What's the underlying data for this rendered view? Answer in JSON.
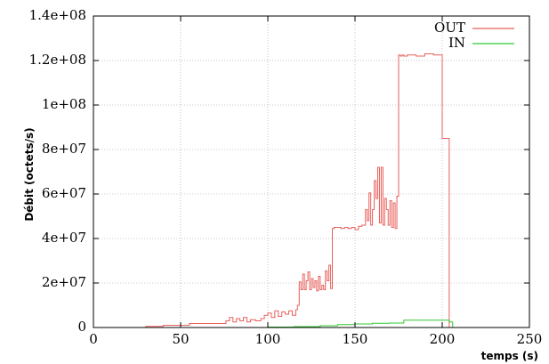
{
  "chart_data": {
    "type": "line",
    "xlabel": "temps (s)",
    "ylabel": "Débit (octets/s)",
    "xlim": [
      0,
      250
    ],
    "ylim": [
      0,
      140000000
    ],
    "xticks": [
      0,
      50,
      100,
      150,
      200,
      250
    ],
    "xtick_labels": [
      "0",
      "50",
      "100",
      "150",
      "200",
      "250"
    ],
    "yticks": [
      0,
      20000000,
      40000000,
      60000000,
      80000000,
      100000000,
      120000000,
      140000000
    ],
    "ytick_labels": [
      "0",
      "2e+07",
      "4e+07",
      "6e+07",
      "8e+07",
      "1e+08",
      "1.2e+08",
      "1.4e+08"
    ],
    "grid": true,
    "legend_position": "top-right",
    "series": [
      {
        "name": "OUT",
        "color": "#e8605c",
        "step": true,
        "x": [
          17,
          30,
          40,
          55,
          76,
          78,
          80,
          82,
          84,
          86,
          88,
          90,
          93,
          96,
          98,
          100,
          102,
          104,
          106,
          108,
          110,
          112,
          114,
          116,
          117,
          118,
          119,
          120,
          121,
          122,
          123,
          124,
          125,
          126,
          127,
          128,
          129,
          130,
          131,
          132,
          133,
          134,
          135,
          136,
          137,
          138,
          139,
          140,
          142,
          144,
          146,
          148,
          150,
          152,
          154,
          156,
          157,
          158,
          159,
          160,
          161,
          162,
          163,
          164,
          165,
          166,
          167,
          168,
          169,
          170,
          171,
          172,
          173,
          174,
          175,
          176,
          177,
          178,
          180,
          185,
          190,
          195,
          200,
          204,
          205,
          206,
          207
        ],
        "y": [
          0,
          500000,
          1000000,
          1800000,
          3000000,
          4500000,
          2500000,
          4000000,
          3000000,
          4500000,
          2500000,
          3500000,
          3000000,
          4000000,
          5500000,
          6500000,
          4500000,
          7500000,
          5000000,
          7000000,
          6000000,
          7500000,
          5500000,
          8000000,
          10000000,
          20500000,
          17000000,
          24000000,
          17000000,
          21000000,
          25000000,
          17000000,
          22000000,
          18000000,
          21000000,
          16500000,
          23000000,
          17000000,
          19000000,
          17000000,
          25500000,
          21000000,
          28000000,
          17500000,
          44500000,
          45000000,
          45000000,
          45000000,
          44500000,
          45000000,
          44500000,
          45000000,
          44000000,
          45500000,
          46000000,
          53000000,
          48000000,
          60500000,
          46000000,
          53000000,
          66000000,
          58000000,
          72000000,
          47000000,
          72000000,
          46000000,
          58000000,
          53000000,
          46000000,
          57000000,
          45000000,
          56000000,
          44500000,
          59000000,
          122500000,
          122000000,
          122500000,
          122000000,
          122500000,
          122000000,
          123000000,
          122500000,
          85000000,
          0,
          0,
          0,
          0
        ]
      },
      {
        "name": "IN",
        "color": "#32c832",
        "step": true,
        "x": [
          17,
          100,
          115,
          130,
          140,
          150,
          160,
          170,
          178,
          190,
          200,
          204,
          206,
          207
        ],
        "y": [
          0,
          200000,
          400000,
          800000,
          1300000,
          1600000,
          1900000,
          2000000,
          3300000,
          3300000,
          3300000,
          2500000,
          0,
          0
        ]
      }
    ]
  }
}
